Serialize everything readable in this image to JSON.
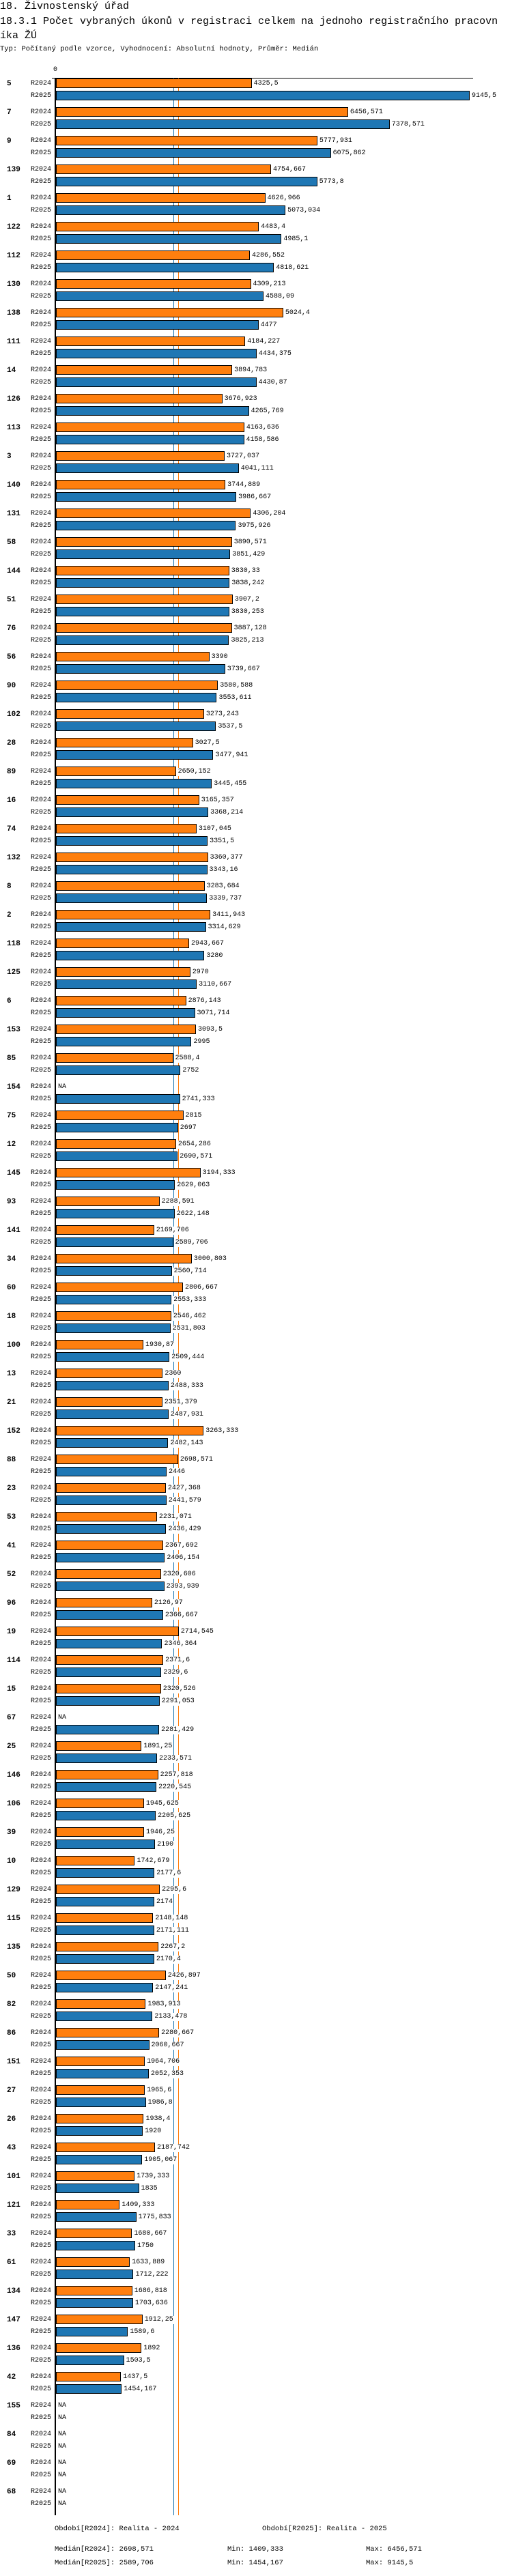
{
  "header": {
    "section": "18. Živnostenský úřad",
    "title_line1": "18.3.1 Počet vybraných úkonů v registraci celkem na jednoho registračního pracovn",
    "title_line2": "íka ŽÚ",
    "subtitle": "Typ: Počítaný podle vzorce, Vyhodnocení: Absolutní hodnoty, Průměr: Medián"
  },
  "chart_data": {
    "type": "bar",
    "orientation": "horizontal",
    "title": "18.3.1 Počet vybraných úkonů v registraci celkem na jednoho registračního pracovníka ŽÚ",
    "xlim": [
      0,
      9145.5
    ],
    "x_tick_labels": [
      "0"
    ],
    "na_label": "NA",
    "categories": [
      "5",
      "7",
      "9",
      "139",
      "1",
      "122",
      "112",
      "130",
      "138",
      "111",
      "14",
      "126",
      "113",
      "3",
      "140",
      "131",
      "58",
      "144",
      "51",
      "76",
      "56",
      "90",
      "102",
      "28",
      "89",
      "16",
      "74",
      "132",
      "8",
      "2",
      "118",
      "125",
      "6",
      "153",
      "85",
      "154",
      "75",
      "12",
      "145",
      "93",
      "141",
      "34",
      "60",
      "18",
      "100",
      "13",
      "21",
      "152",
      "88",
      "23",
      "53",
      "41",
      "52",
      "96",
      "19",
      "114",
      "15",
      "67",
      "25",
      "146",
      "106",
      "39",
      "10",
      "129",
      "115",
      "135",
      "50",
      "82",
      "86",
      "151",
      "27",
      "26",
      "43",
      "101",
      "121",
      "33",
      "61",
      "134",
      "147",
      "136",
      "42",
      "155",
      "84",
      "69",
      "68"
    ],
    "series": [
      {
        "name": "R2024",
        "color": "#ff7f0e",
        "values": [
          4325.5,
          6456.571,
          5777.931,
          4754.667,
          4626.966,
          4483.4,
          4286.552,
          4309.213,
          5024.4,
          4184.227,
          3894.783,
          3676.923,
          4163.636,
          3727.037,
          3744.889,
          4306.204,
          3890.571,
          3830.33,
          3907.2,
          3887.128,
          3390,
          3580.588,
          3273.243,
          3027.5,
          2650.152,
          3165.357,
          3107.045,
          3360.377,
          3283.684,
          3411.943,
          2943.667,
          2970,
          2876.143,
          3093.5,
          2588.4,
          null,
          2815,
          2654.286,
          3194.333,
          2288.591,
          2169.706,
          3000.803,
          2806.667,
          2546.462,
          1930.87,
          2360,
          2351.379,
          3263.333,
          2698.571,
          2427.368,
          2231.071,
          2367.692,
          2320.606,
          2126.97,
          2714.545,
          2371.6,
          2320.526,
          null,
          1891.25,
          2257.818,
          1945.625,
          1946.25,
          1742.679,
          2295.6,
          2148.148,
          2267.2,
          2426.897,
          1983.913,
          2280.667,
          1964.706,
          1965.6,
          1938.4,
          2187.742,
          1739.333,
          1409.333,
          1680.667,
          1633.889,
          1686.818,
          1912.25,
          1892,
          1437.5,
          null,
          null,
          null,
          null
        ]
      },
      {
        "name": "R2025",
        "color": "#1f77b4",
        "values": [
          9145.5,
          7378.571,
          6075.862,
          5773.8,
          5073.034,
          4985.1,
          4818.621,
          4588.09,
          4477,
          4434.375,
          4430.87,
          4265.769,
          4158.586,
          4041.111,
          3986.667,
          3975.926,
          3851.429,
          3838.242,
          3830.253,
          3825.213,
          3739.667,
          3553.611,
          3537.5,
          3477.941,
          3445.455,
          3368.214,
          3351.5,
          3343.16,
          3339.737,
          3314.629,
          3280,
          3110.667,
          3071.714,
          2995,
          2752,
          2741.333,
          2697,
          2690.571,
          2629.063,
          2622.148,
          2589.706,
          2560.714,
          2553.333,
          2531.803,
          2509.444,
          2488.333,
          2487.931,
          2482.143,
          2446,
          2441.579,
          2436.429,
          2406.154,
          2393.939,
          2366.667,
          2346.364,
          2329.6,
          2291.053,
          2281.429,
          2233.571,
          2220.545,
          2205.625,
          2190,
          2177.6,
          2174,
          2171.111,
          2170.4,
          2147.241,
          2133.478,
          2060.667,
          2052.353,
          1986.8,
          1920,
          1905.067,
          1835,
          1775.833,
          1750,
          1712.222,
          1703.636,
          1589.6,
          1503.5,
          1454.167,
          null,
          null,
          null,
          null
        ]
      }
    ],
    "medians": {
      "R2024": 2698.571,
      "R2025": 2589.706
    }
  },
  "legend": {
    "r2024": "Období[R2024]: Realita - 2024",
    "r2025": "Období[R2025]: Realita - 2025",
    "median_r2024": "Medián[R2024]: 2698,571",
    "min_r2024": "Min: 1409,333",
    "max_r2024": "Max: 6456,571",
    "median_r2025": "Medián[R2025]: 2589,706",
    "min_r2025": "Min: 1454,167",
    "max_r2025": "Max: 9145,5"
  }
}
